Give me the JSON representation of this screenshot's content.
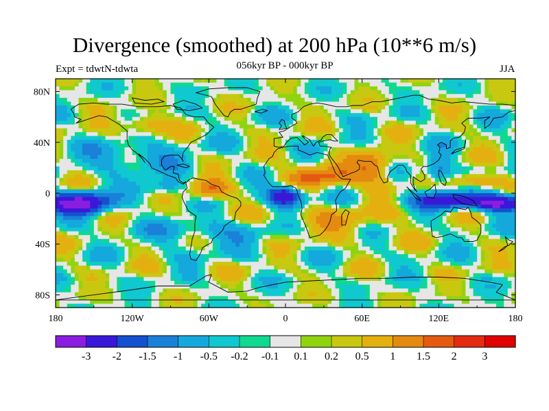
{
  "chart_data": {
    "type": "heatmap",
    "title": "Divergence (smoothed) at 200 hPa (10**6 m/s)",
    "experiment_label": "Expt = tdwtN-tdwta",
    "subtitle": "056kyr BP - 000kyr BP",
    "season": "JJA",
    "x_range": [
      -180,
      180
    ],
    "y_range": [
      -90,
      90
    ],
    "x_ticks": [
      {
        "value": -180,
        "label": "180"
      },
      {
        "value": -120,
        "label": "120W"
      },
      {
        "value": -60,
        "label": "60W"
      },
      {
        "value": 0,
        "label": "0"
      },
      {
        "value": 60,
        "label": "60E"
      },
      {
        "value": 120,
        "label": "120E"
      },
      {
        "value": 180,
        "label": "180"
      }
    ],
    "y_ticks": [
      {
        "value": 80,
        "label": "80N"
      },
      {
        "value": 40,
        "label": "40N"
      },
      {
        "value": 0,
        "label": "0"
      },
      {
        "value": -40,
        "label": "40S"
      },
      {
        "value": -80,
        "label": "80S"
      }
    ],
    "levels": [
      {
        "label": "-3",
        "value": -3
      },
      {
        "label": "-2",
        "value": -2
      },
      {
        "label": "-1.5",
        "value": -1.5
      },
      {
        "label": "-1",
        "value": -1
      },
      {
        "label": "-0.5",
        "value": -0.5
      },
      {
        "label": "-0.2",
        "value": -0.2
      },
      {
        "label": "-0.1",
        "value": -0.1
      },
      {
        "label": "0.1",
        "value": 0.1
      },
      {
        "label": "0.2",
        "value": 0.2
      },
      {
        "label": "0.5",
        "value": 0.5
      },
      {
        "label": "1",
        "value": 1
      },
      {
        "label": "1.5",
        "value": 1.5
      },
      {
        "label": "2",
        "value": 2
      },
      {
        "label": "3",
        "value": 3
      }
    ],
    "colors": [
      "#8a1ee0",
      "#3a18d8",
      "#1450d0",
      "#1a80d8",
      "#14a8dc",
      "#10c8d0",
      "#10d890",
      "#e6e6e6",
      "#90d410",
      "#c8c810",
      "#e4b010",
      "#e48a10",
      "#e45a10",
      "#e42a10",
      "#e00000"
    ],
    "field_features": [
      {
        "lon": -160,
        "lat": -8,
        "value": -3.4,
        "rlon": 22,
        "rlat": 9
      },
      {
        "lon": 0,
        "lat": -2,
        "value": -3.0,
        "rlon": 14,
        "rlat": 8
      },
      {
        "lon": 130,
        "lat": -6,
        "value": -2.6,
        "rlon": 28,
        "rlat": 7
      },
      {
        "lon": 165,
        "lat": -8,
        "value": -2.8,
        "rlon": 14,
        "rlat": 6
      },
      {
        "lon": 30,
        "lat": 14,
        "value": 1.8,
        "rlon": 28,
        "rlat": 8
      },
      {
        "lon": -60,
        "lat": 2,
        "value": 1.6,
        "rlon": 16,
        "rlat": 8
      },
      {
        "lon": 70,
        "lat": 20,
        "value": 1.4,
        "rlon": 14,
        "rlat": 14
      },
      {
        "lon": 150,
        "lat": 10,
        "value": 1.5,
        "rlon": 16,
        "rlat": 6
      },
      {
        "lon": -95,
        "lat": 5,
        "value": -1.2,
        "rlon": 20,
        "rlat": 6
      },
      {
        "lon": -120,
        "lat": 28,
        "value": -1.0,
        "rlon": 40,
        "rlat": 10
      },
      {
        "lon": 120,
        "lat": 18,
        "value": -1.4,
        "rlon": 10,
        "rlat": 12
      },
      {
        "lon": 40,
        "lat": -22,
        "value": 0.7,
        "rlon": 50,
        "rlat": 12
      },
      {
        "lon": -60,
        "lat": -32,
        "value": -0.7,
        "rlon": 50,
        "rlat": 12
      },
      {
        "lon": -110,
        "lat": 55,
        "value": 1.2,
        "rlon": 16,
        "rlat": 8
      }
    ]
  }
}
